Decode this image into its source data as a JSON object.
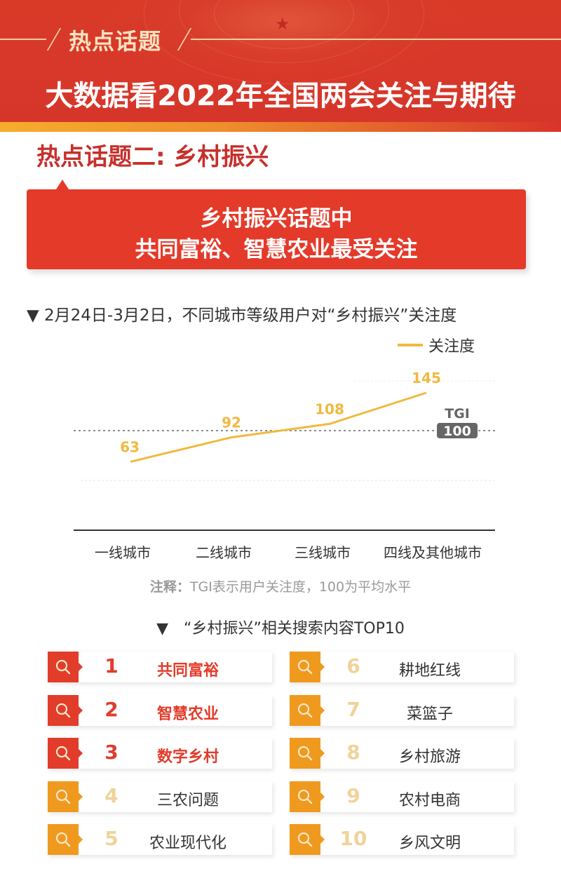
{
  "header": {
    "kicker": "热点话题",
    "title": "大数据看2022年全国两会关注与期待"
  },
  "section": {
    "title": "热点话题二: 乡村振兴"
  },
  "callout": {
    "line1": "乡村振兴话题中",
    "line2": "共同富裕、智慧农业最受关注"
  },
  "chart": {
    "title": "▼ 2月24日-3月2日，不同城市等级用户对“乡村振兴”关注度",
    "legend_label": "关注度",
    "baseline_label": "TGI",
    "baseline_value": "100",
    "note_prefix": "注释：",
    "note_text": "TGI表示用户关注度，100为平均水平"
  },
  "chart_data": {
    "type": "line",
    "title": "2月24日-3月2日，不同城市等级用户对“乡村振兴”关注度",
    "categories": [
      "一线城市",
      "二线城市",
      "三线城市",
      "四线及其他城市"
    ],
    "series": [
      {
        "name": "关注度",
        "values": [
          63,
          92,
          108,
          145
        ],
        "color": "#f0b940"
      }
    ],
    "reference_line": {
      "label": "TGI",
      "value": 100
    },
    "xlabel": "",
    "ylabel": "TGI",
    "grid": false,
    "legend_position": "top-right",
    "note": "TGI表示用户关注度，100为平均水平"
  },
  "top10": {
    "title": "“乡村振兴”相关搜索内容TOP10",
    "title_marker": "▼",
    "items": [
      {
        "rank": "1",
        "term": "共同富裕"
      },
      {
        "rank": "2",
        "term": "智慧农业"
      },
      {
        "rank": "3",
        "term": "数字乡村"
      },
      {
        "rank": "4",
        "term": "三农问题"
      },
      {
        "rank": "5",
        "term": "农业现代化"
      },
      {
        "rank": "6",
        "term": "耕地红线"
      },
      {
        "rank": "7",
        "term": "菜篮子"
      },
      {
        "rank": "8",
        "term": "乡村旅游"
      },
      {
        "rank": "9",
        "term": "农村电商"
      },
      {
        "rank": "10",
        "term": "乡风文明"
      }
    ]
  },
  "colors": {
    "brand_red": "#d9362a",
    "callout_red": "#e43a2a",
    "section_red": "#c6302c",
    "gold": "#f0b940",
    "orange": "#ef9a1e",
    "rank_red": "#e23c2b",
    "rank_faded": "#f0d39a",
    "text_dark": "#333333",
    "text_grey": "#999999",
    "tgi_badge": "#666666"
  }
}
